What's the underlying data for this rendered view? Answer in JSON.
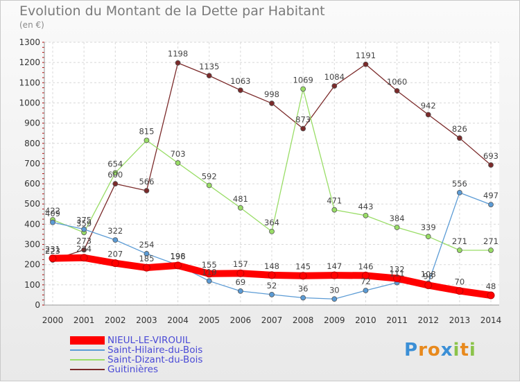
{
  "header": {
    "title": "Evolution du Montant de la Dette par Habitant",
    "unit": "(en €)"
  },
  "logo": {
    "text": "Proxiti",
    "letters": [
      {
        "ch": "P",
        "color": "#3b8fd6"
      },
      {
        "ch": "r",
        "color": "#e8891c"
      },
      {
        "ch": "o",
        "color": "#e8891c"
      },
      {
        "ch": "x",
        "color": "#3b8fd6"
      },
      {
        "ch": "i",
        "color": "#8bc34a"
      },
      {
        "ch": "t",
        "color": "#e8891c"
      },
      {
        "ch": "i",
        "color": "#8bc34a"
      }
    ]
  },
  "chart_data": {
    "type": "line",
    "title": "Evolution du Montant de la Dette par Habitant",
    "subtitle": "(en €)",
    "x": [
      "2000",
      "2001",
      "2002",
      "2003",
      "2004",
      "2005",
      "2006",
      "2007",
      "2008",
      "2009",
      "2010",
      "2011",
      "2012",
      "2013",
      "2014"
    ],
    "ylim": [
      0,
      1300
    ],
    "yticks": [
      0,
      100,
      200,
      300,
      400,
      500,
      600,
      700,
      800,
      900,
      1000,
      1100,
      1200,
      1300
    ],
    "grid": true,
    "legend_position": "bottom-left",
    "series": [
      {
        "name": "NIEUL-LE-VIROUIL",
        "color": "#ff0000",
        "values": [
          231,
          234,
          207,
          185,
          196,
          155,
          157,
          148,
          145,
          147,
          146,
          132,
          98,
          70,
          48
        ]
      },
      {
        "name": "Saint-Hilaire-du-Bois",
        "color": "#5b9bd5",
        "values": [
          409,
          375,
          322,
          254,
          198,
          119,
          69,
          52,
          36,
          30,
          72,
          111,
          108,
          556,
          497
        ]
      },
      {
        "name": "Saint-Dizant-du-Bois",
        "color": "#99dd66",
        "values": [
          422,
          359,
          654,
          815,
          703,
          592,
          481,
          364,
          1069,
          471,
          443,
          384,
          339,
          271,
          271
        ]
      },
      {
        "name": "Guitinières",
        "color": "#7b2a2a",
        "values": [
          223,
          273,
          600,
          566,
          1198,
          1135,
          1063,
          998,
          873,
          1084,
          1191,
          1060,
          942,
          826,
          693
        ]
      }
    ]
  }
}
